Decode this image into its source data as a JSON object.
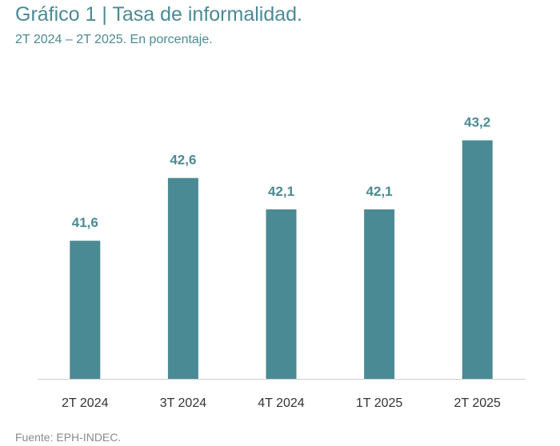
{
  "header": {
    "title": "Gráfico 1 | Tasa de informalidad.",
    "subtitle": "2T 2024 – 2T 2025. En porcentaje."
  },
  "footer": {
    "source": "Fuente: EPH-INDEC."
  },
  "colors": {
    "bar": "#4a8a95",
    "title": "#4a8a95"
  },
  "chart_data": {
    "type": "bar",
    "title": "Gráfico 1 | Tasa de informalidad.",
    "subtitle": "2T 2024 – 2T 2025. En porcentaje.",
    "xlabel": "",
    "ylabel": "",
    "categories": [
      "2T 2024",
      "3T 2024",
      "4T 2024",
      "1T 2025",
      "2T 2025"
    ],
    "values": [
      41.6,
      42.6,
      42.1,
      42.1,
      43.2
    ],
    "value_labels": [
      "41,6",
      "42,6",
      "42,1",
      "42,1",
      "43,2"
    ],
    "ylim": [
      39.4,
      43.5
    ],
    "grid": false,
    "legend": "none"
  }
}
